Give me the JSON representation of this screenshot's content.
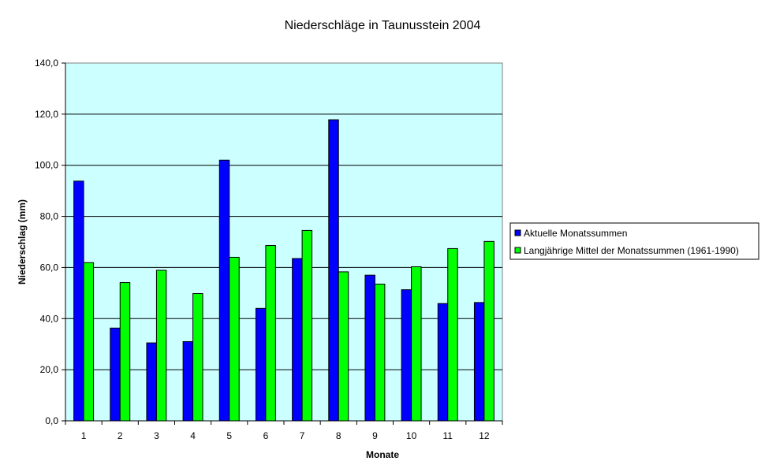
{
  "chart_data": {
    "type": "bar",
    "title": "Niederschläge in Taunusstein 2004",
    "xlabel": "Monate",
    "ylabel": "Niederschlag (mm)",
    "categories": [
      "1",
      "2",
      "3",
      "4",
      "5",
      "6",
      "7",
      "8",
      "9",
      "10",
      "11",
      "12"
    ],
    "ylim": [
      0,
      140
    ],
    "yticks": [
      "0,0",
      "20,0",
      "40,0",
      "60,0",
      "80,0",
      "100,0",
      "120,0",
      "140,0"
    ],
    "grid": true,
    "legend_position": "right",
    "plot_background": "#CCFFFF",
    "series": [
      {
        "name": "Aktuelle Monatssummen",
        "color": "#0000FF",
        "values": [
          93.8,
          36.3,
          30.5,
          31.0,
          102.0,
          44.0,
          63.5,
          117.8,
          57.0,
          51.3,
          45.9,
          46.3
        ]
      },
      {
        "name": "Langjährige Mittel der Monatssummen (1961-1990)",
        "color": "#00FF00",
        "values": [
          61.9,
          54.1,
          58.9,
          49.8,
          64.0,
          68.6,
          74.5,
          58.3,
          53.5,
          60.3,
          67.4,
          70.2
        ]
      }
    ]
  }
}
